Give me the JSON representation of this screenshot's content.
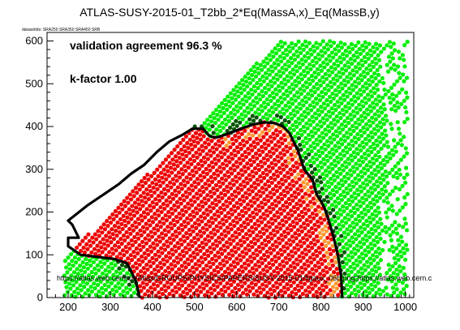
{
  "chart_data": {
    "type": "scatter",
    "title": "ATLAS-SUSY-2015-01_T2bb_2*Eq(MassA,x)_Eq(MassB,y)",
    "subtitle": "datasetIds: SRA250 SRA350 SRA450 SRB",
    "xlabel": "",
    "ylabel": "",
    "xlim": [
      150,
      1020
    ],
    "ylim": [
      0,
      620
    ],
    "x_ticks": [
      200,
      300,
      400,
      500,
      600,
      700,
      800,
      900,
      1000
    ],
    "y_ticks": [
      0,
      100,
      200,
      300,
      400,
      500,
      600
    ],
    "grid": false,
    "legend": "none",
    "annotations": {
      "agreement": "validation agreement 96.3 %",
      "kfactor": "k-factor 1.00",
      "url": "https://atlas.web.cern.ch/Atlas/GROUPS/PHYSICS/PAPERS/SUSY-2015-01/figaux_06b.png;https://atlas.web.cern.c"
    },
    "colors": {
      "excluded_both": "#ee0000",
      "allowed_both": "#00ee00",
      "excluded_only_official": "#ff9933",
      "excluded_only_smodels": "#005500",
      "official_contour": "#000000"
    },
    "point_categories": [
      {
        "name": "excluded_both",
        "color": "#ee0000"
      },
      {
        "name": "allowed_both",
        "color": "#00ee00"
      },
      {
        "name": "excluded_only_official",
        "color": "#ff9933"
      },
      {
        "name": "excluded_only_smodels",
        "color": "#005500"
      }
    ],
    "exclusion_contour": {
      "x": [
        370,
        360,
        340,
        310,
        270,
        230,
        200,
        200,
        225,
        210,
        200,
        245,
        260,
        290,
        320,
        350,
        380,
        410,
        440,
        470,
        495,
        510,
        520,
        535,
        545,
        555,
        585,
        610,
        640,
        665,
        690,
        710,
        725,
        745,
        760,
        780,
        790,
        800,
        808,
        815,
        820,
        830,
        840,
        848,
        850
      ],
      "y": [
        0,
        40,
        80,
        90,
        95,
        100,
        120,
        140,
        140,
        170,
        180,
        215,
        225,
        245,
        265,
        290,
        310,
        340,
        365,
        380,
        395,
        395,
        395,
        378,
        375,
        375,
        385,
        395,
        405,
        410,
        408,
        400,
        385,
        345,
        300,
        275,
        240,
        225,
        210,
        190,
        175,
        140,
        100,
        50,
        0
      ]
    },
    "series": [
      {
        "name": "",
        "pattern": "red points on a rotated diagonal lattice filling the excluded region (inside contour)",
        "x_range": [
          210,
          850
        ],
        "y_range": [
          0,
          400
        ]
      },
      {
        "name": "",
        "pattern": "green points on a rotated diagonal lattice covering the allowed region (above / right of contour)",
        "x_range": [
          350,
          1000
        ],
        "y_range": [
          0,
          600
        ]
      }
    ]
  }
}
